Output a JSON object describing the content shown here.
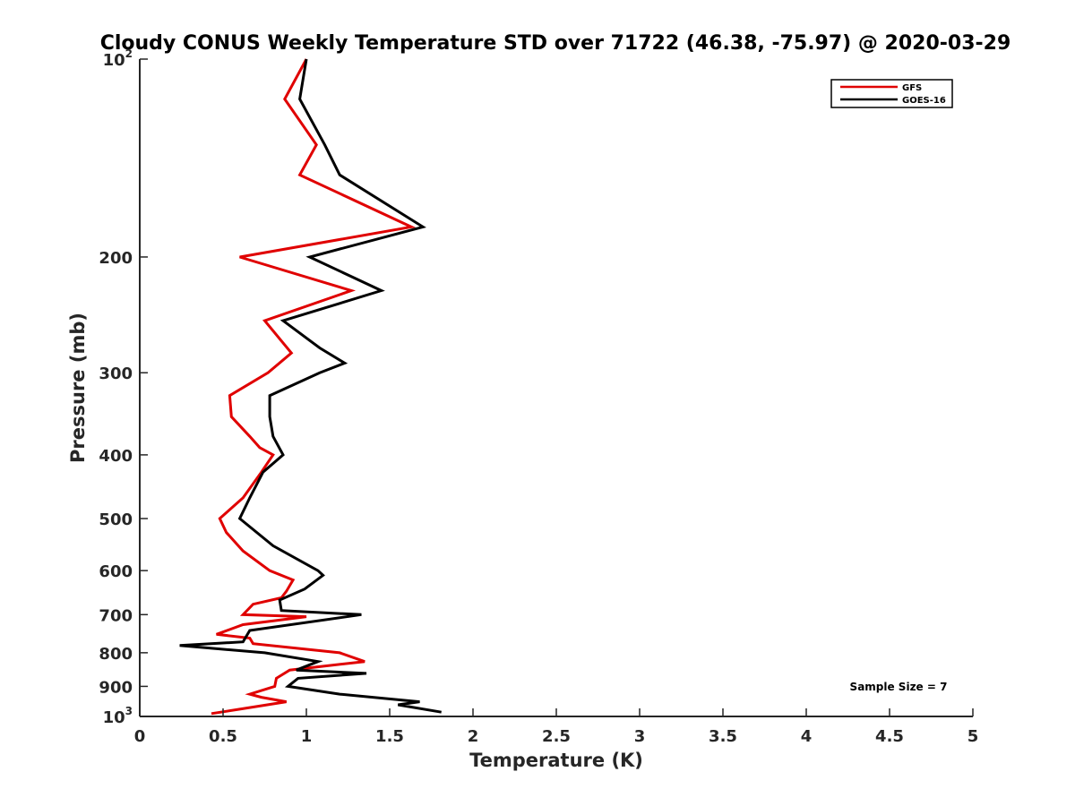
{
  "chart_data": {
    "type": "line",
    "title": "Cloudy CONUS Weekly Temperature STD over 71722 (46.38, -75.97) @ 2020-03-29",
    "xlabel": "Temperature (K)",
    "ylabel": "Pressure (mb)",
    "xlim": [
      0,
      5
    ],
    "ylim": [
      100,
      1000
    ],
    "yscale": "log",
    "y_reversed": true,
    "grid": false,
    "legend_position": "top-right",
    "x_ticks": [
      {
        "value": 0,
        "label": "0"
      },
      {
        "value": 0.5,
        "label": "0.5"
      },
      {
        "value": 1,
        "label": "1"
      },
      {
        "value": 1.5,
        "label": "1.5"
      },
      {
        "value": 2,
        "label": "2"
      },
      {
        "value": 2.5,
        "label": "2.5"
      },
      {
        "value": 3,
        "label": "3"
      },
      {
        "value": 3.5,
        "label": "3.5"
      },
      {
        "value": 4,
        "label": "4"
      },
      {
        "value": 4.5,
        "label": "4.5"
      },
      {
        "value": 5,
        "label": "5"
      }
    ],
    "y_ticks": [
      {
        "value": 100,
        "label": "10",
        "sup": "2"
      },
      {
        "value": 200,
        "label": "200"
      },
      {
        "value": 300,
        "label": "300"
      },
      {
        "value": 400,
        "label": "400"
      },
      {
        "value": 500,
        "label": "500"
      },
      {
        "value": 600,
        "label": "600"
      },
      {
        "value": 700,
        "label": "700"
      },
      {
        "value": 800,
        "label": "800"
      },
      {
        "value": 900,
        "label": "900"
      },
      {
        "value": 1000,
        "label": "10",
        "sup": "3"
      }
    ],
    "series": [
      {
        "name": "GFS",
        "color": "#e00000",
        "points": [
          [
            1.0,
            100
          ],
          [
            0.87,
            115
          ],
          [
            1.06,
            135
          ],
          [
            0.96,
            150
          ],
          [
            1.63,
            180
          ],
          [
            0.6,
            200
          ],
          [
            1.27,
            225
          ],
          [
            0.75,
            250
          ],
          [
            0.91,
            280
          ],
          [
            0.77,
            300
          ],
          [
            0.54,
            325
          ],
          [
            0.55,
            350
          ],
          [
            0.66,
            375
          ],
          [
            0.72,
            390
          ],
          [
            0.8,
            400
          ],
          [
            0.73,
            425
          ],
          [
            0.62,
            465
          ],
          [
            0.48,
            500
          ],
          [
            0.52,
            525
          ],
          [
            0.62,
            560
          ],
          [
            0.78,
            600
          ],
          [
            0.92,
            620
          ],
          [
            0.88,
            645
          ],
          [
            0.85,
            660
          ],
          [
            0.68,
            675
          ],
          [
            0.62,
            700
          ],
          [
            1.0,
            705
          ],
          [
            0.62,
            725
          ],
          [
            0.46,
            750
          ],
          [
            0.66,
            760
          ],
          [
            0.68,
            775
          ],
          [
            1.2,
            800
          ],
          [
            1.35,
            825
          ],
          [
            0.9,
            850
          ],
          [
            0.82,
            875
          ],
          [
            0.81,
            900
          ],
          [
            0.66,
            925
          ],
          [
            0.73,
            935
          ],
          [
            0.88,
            950
          ],
          [
            0.6,
            975
          ],
          [
            0.43,
            990
          ]
        ]
      },
      {
        "name": "GOES-16",
        "color": "#000000",
        "points": [
          [
            1.0,
            100
          ],
          [
            0.96,
            115
          ],
          [
            1.11,
            135
          ],
          [
            1.2,
            150
          ],
          [
            1.7,
            180
          ],
          [
            1.02,
            200
          ],
          [
            1.45,
            225
          ],
          [
            0.86,
            250
          ],
          [
            1.08,
            275
          ],
          [
            1.23,
            290
          ],
          [
            1.08,
            300
          ],
          [
            0.78,
            325
          ],
          [
            0.78,
            350
          ],
          [
            0.8,
            375
          ],
          [
            0.86,
            400
          ],
          [
            0.74,
            425
          ],
          [
            0.66,
            465
          ],
          [
            0.6,
            500
          ],
          [
            0.8,
            550
          ],
          [
            1.07,
            600
          ],
          [
            1.1,
            610
          ],
          [
            0.99,
            640
          ],
          [
            0.84,
            665
          ],
          [
            0.85,
            690
          ],
          [
            1.33,
            700
          ],
          [
            0.66,
            740
          ],
          [
            0.62,
            770
          ],
          [
            0.24,
            780
          ],
          [
            0.75,
            800
          ],
          [
            1.07,
            825
          ],
          [
            0.94,
            850
          ],
          [
            1.36,
            860
          ],
          [
            0.95,
            875
          ],
          [
            0.89,
            900
          ],
          [
            1.2,
            925
          ],
          [
            1.68,
            950
          ],
          [
            1.55,
            960
          ],
          [
            1.81,
            985
          ]
        ]
      }
    ],
    "annotation": "Sample Size = 7"
  }
}
